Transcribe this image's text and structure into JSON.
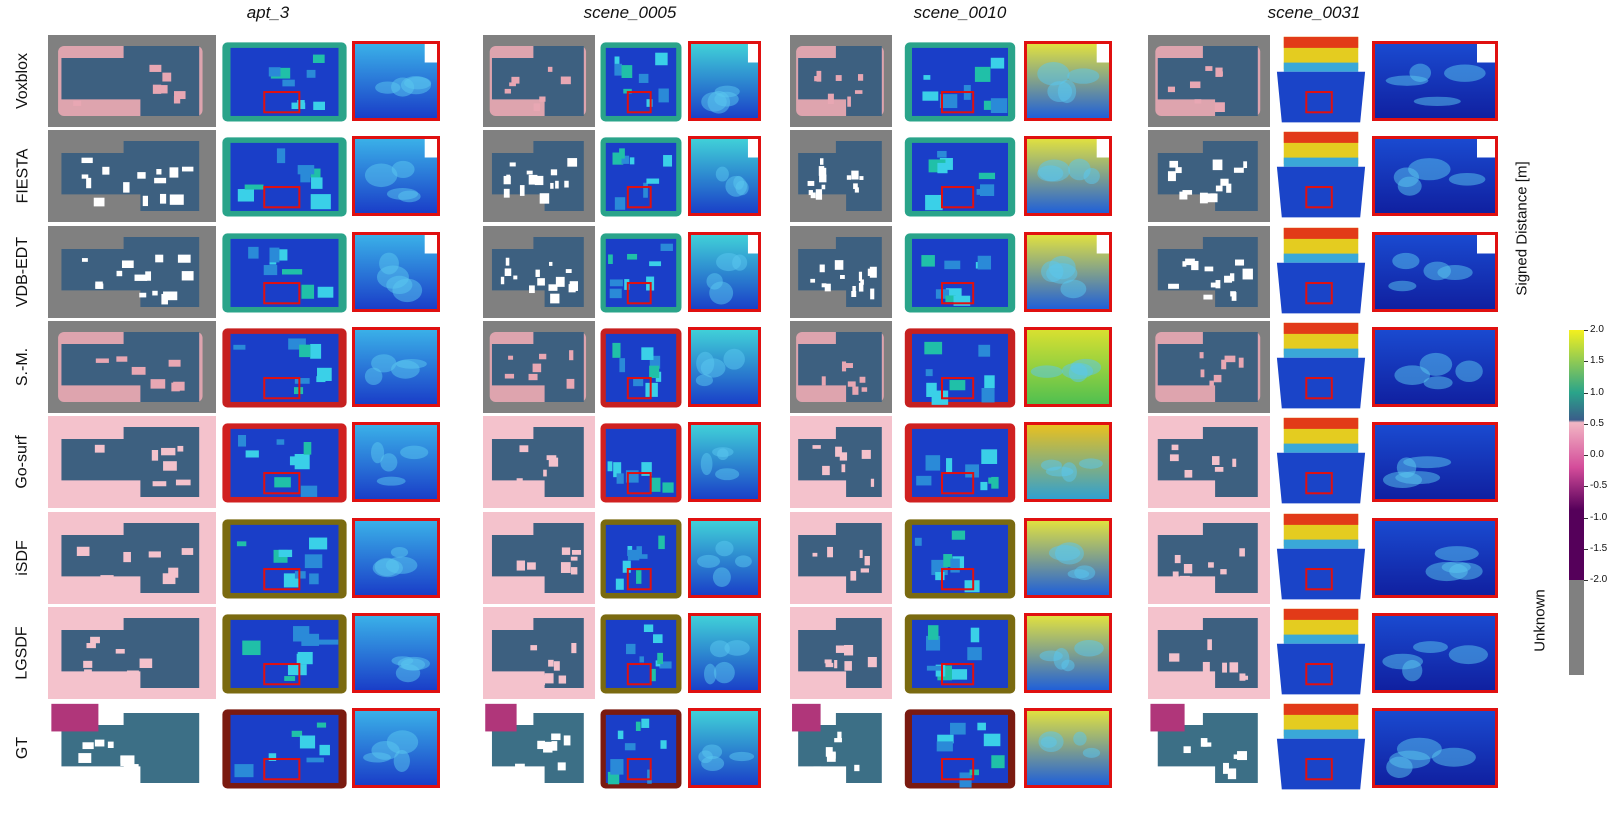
{
  "scenes": [
    "apt_3",
    "scene_0005",
    "scene_0010",
    "scene_0031"
  ],
  "methods": [
    "Voxblox",
    "FIESTA",
    "VDB-EDT",
    "S.-M.",
    "Go-surf",
    "iSDF",
    "LGSDF",
    "GT"
  ],
  "colorbar": {
    "label": "Signed Distance [m]",
    "unknown_label": "Unknown",
    "ticks": [
      "2.0",
      "1.5",
      "1.0",
      "0.5",
      "0.0",
      "-0.5",
      "-1.0",
      "-1.5",
      "-2.0"
    ],
    "colors": {
      "positive_top": "#f4f01e",
      "mid_green": "#2aa48a",
      "zero": "#3a5d8a",
      "negative_top": "#f2b7c4",
      "negative_mid": "#d44c9a",
      "negative_bottom": "#55005a",
      "unknown": "#808080"
    }
  },
  "zoom_box_color": "#e01010"
}
